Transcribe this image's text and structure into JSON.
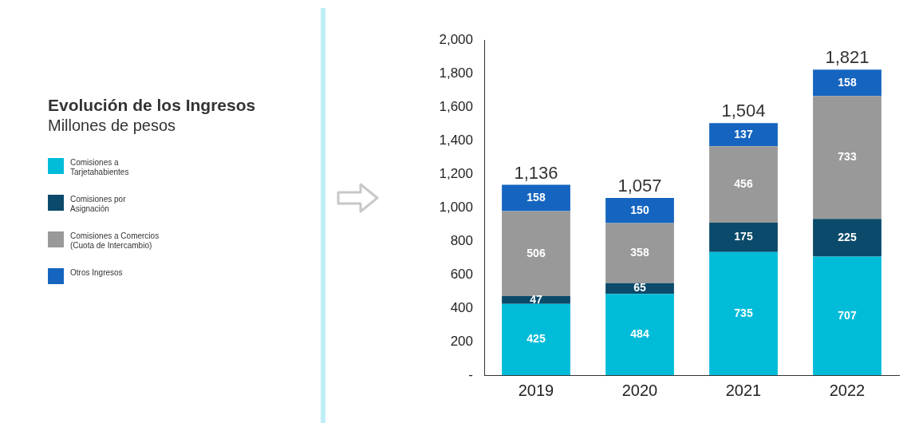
{
  "chart_data": {
    "type": "bar",
    "title": "Evolución de los Ingresos",
    "subtitle": "Millones de pesos",
    "categories": [
      "2019",
      "2020",
      "2021",
      "2022"
    ],
    "stacked": true,
    "series": [
      {
        "name": "Comisiones a Tarjetahabientes",
        "color": "#00bcd9",
        "values": [
          425,
          484,
          735,
          707
        ]
      },
      {
        "name": "Comisiones por Asignación",
        "color": "#0b4a6a",
        "values": [
          47,
          65,
          175,
          225
        ]
      },
      {
        "name": "Comisiones a Comercios (Cuota de Intercambio)",
        "color": "#999999",
        "values": [
          506,
          358,
          456,
          733
        ]
      },
      {
        "name": "Otros Ingresos",
        "color": "#1565c0",
        "values": [
          158,
          150,
          137,
          158
        ]
      }
    ],
    "data_labels": true,
    "totals": [
      "1,136",
      "1,057",
      "1,504",
      "1,821"
    ],
    "ylim": [
      0,
      2000
    ],
    "yticks": [
      {
        "value": 0,
        "label": "-"
      },
      200,
      400,
      600,
      800,
      {
        "value": 1000,
        "label": "1,000"
      },
      {
        "value": 1200,
        "label": "1,200"
      },
      {
        "value": 1400,
        "label": "1,400"
      },
      {
        "value": 1600,
        "label": "1,600"
      },
      {
        "value": 1800,
        "label": "1,800"
      },
      {
        "value": 2000,
        "label": "2,000"
      }
    ],
    "grid": false,
    "legend": "left"
  }
}
